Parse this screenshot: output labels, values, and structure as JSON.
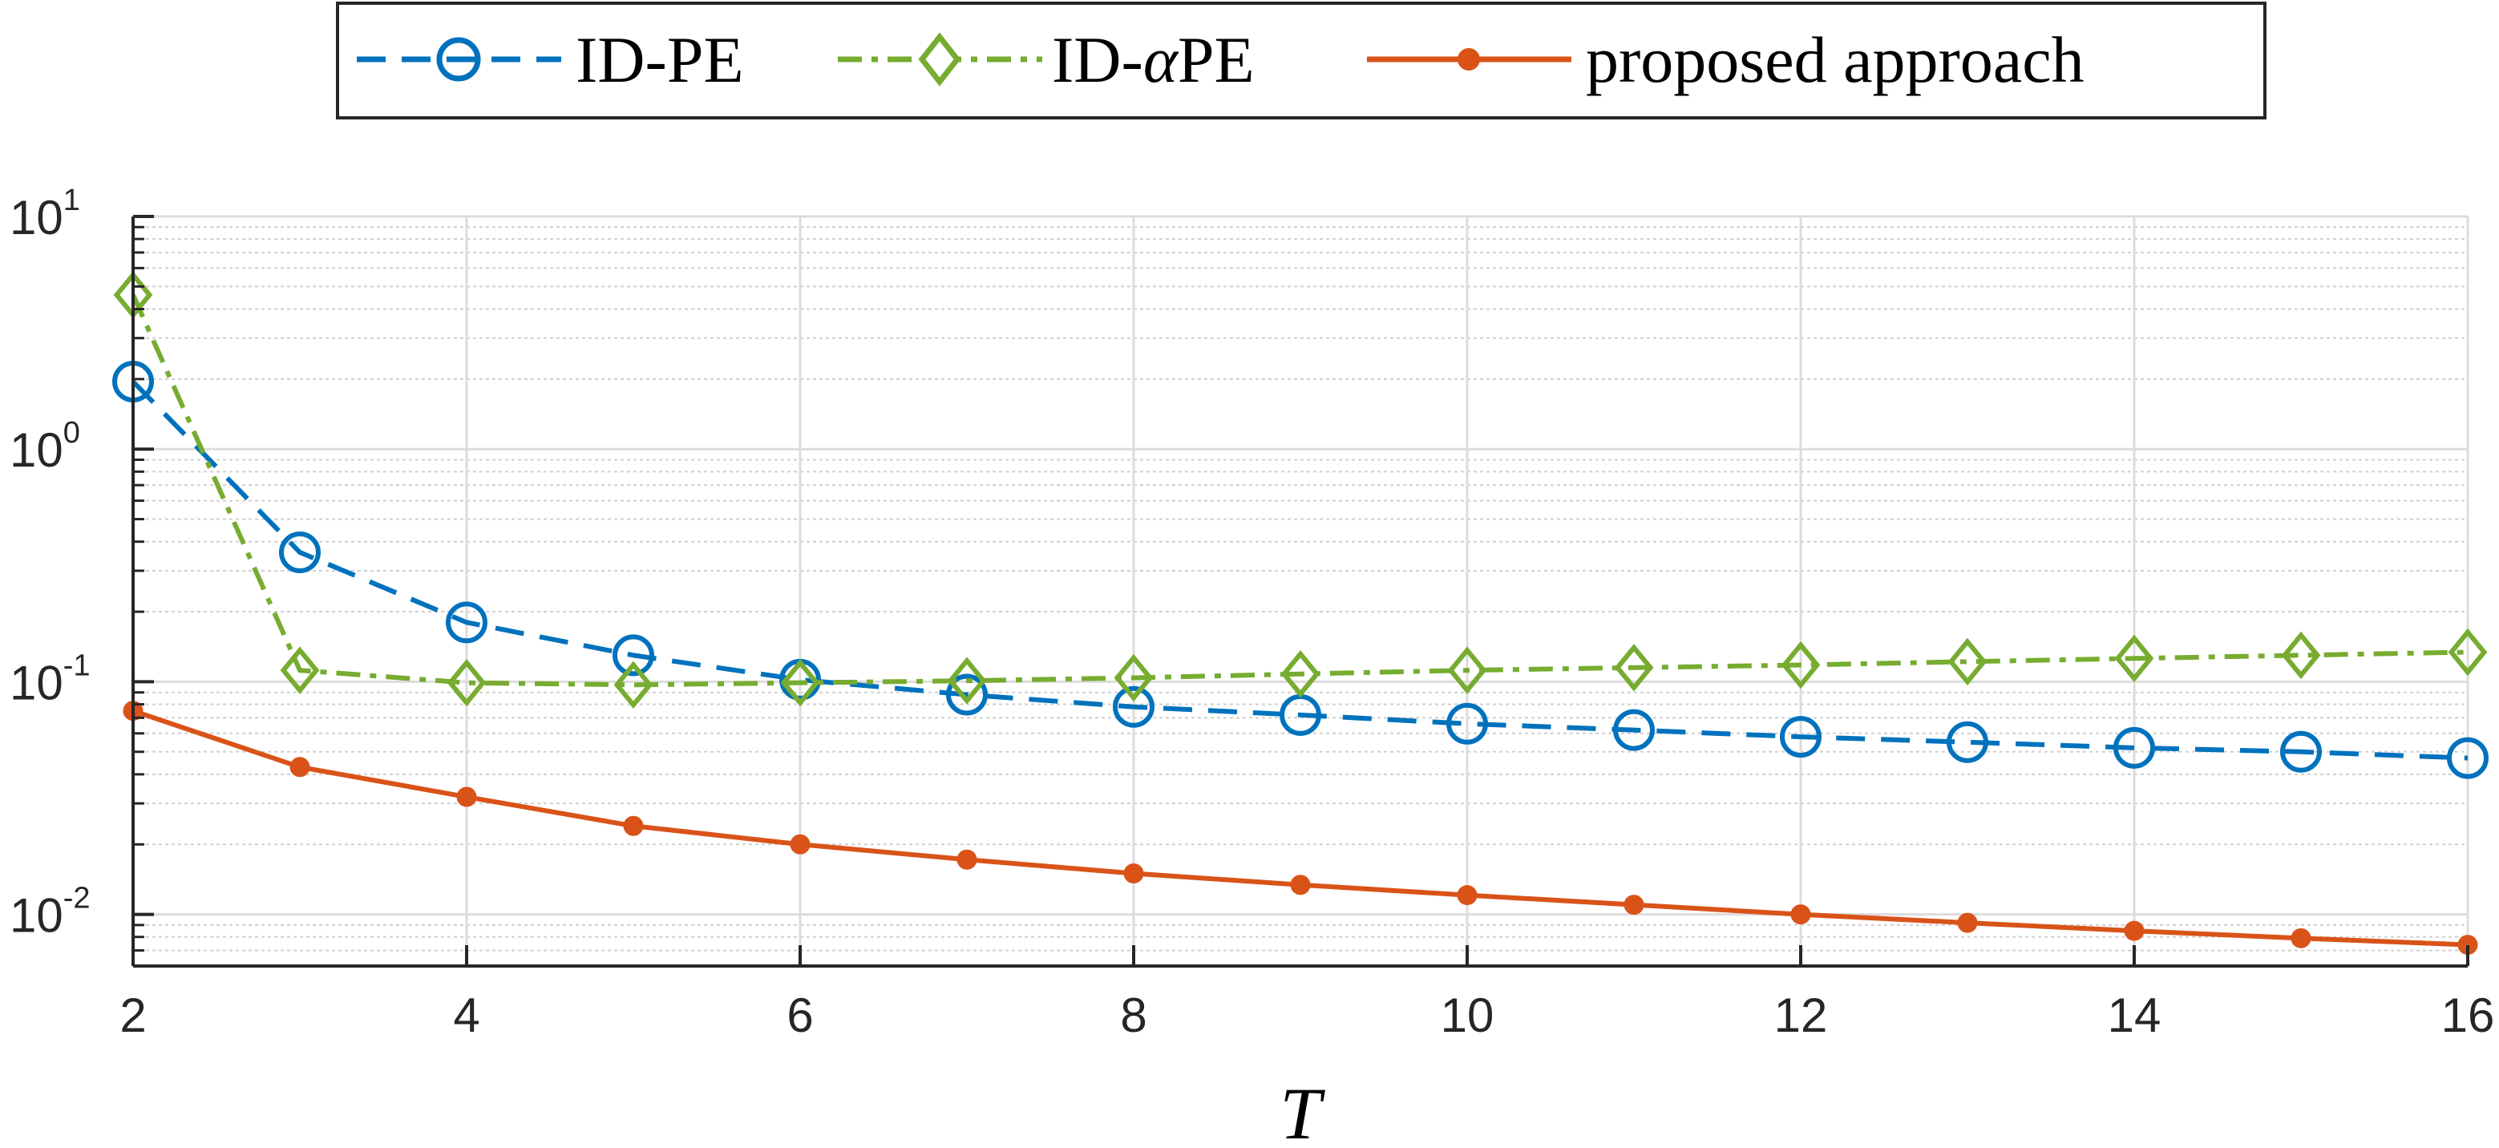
{
  "chart_data": {
    "type": "line",
    "yscale": "log",
    "xlabel": "T",
    "ylabel": "",
    "xlim": [
      2,
      16
    ],
    "ylim": [
      0.006,
      10
    ],
    "xticks": [
      2,
      4,
      6,
      8,
      10,
      12,
      14,
      16
    ],
    "xtick_labels": [
      "2",
      "4",
      "6",
      "8",
      "10",
      "12",
      "14",
      "16"
    ],
    "yticks": [
      {
        "value": 10,
        "base": "10",
        "exp": "1"
      },
      {
        "value": 1,
        "base": "10",
        "exp": "0"
      },
      {
        "value": 0.1,
        "base": "10",
        "exp": "-1"
      },
      {
        "value": 0.01,
        "base": "10",
        "exp": "-2"
      }
    ],
    "grid": true,
    "legend_position": "top-center-outside",
    "x": [
      2,
      3,
      4,
      5,
      6,
      7,
      8,
      9,
      10,
      11,
      12,
      13,
      14,
      15,
      16
    ],
    "series": [
      {
        "name": "ID-PE",
        "legend_prefix": "ID-",
        "legend_suffix": "PE",
        "color": "#0072BD",
        "line_style": "dashed",
        "marker": "circle",
        "values": [
          1.95,
          0.36,
          0.18,
          0.13,
          0.102,
          0.088,
          0.078,
          0.072,
          0.066,
          0.062,
          0.058,
          0.055,
          0.052,
          0.05,
          0.047
        ]
      },
      {
        "name": "ID-αPE",
        "legend_prefix": "ID-",
        "legend_alpha": "α",
        "legend_suffix": "PE",
        "color": "#77AC30",
        "line_style": "dashdot",
        "marker": "diamond",
        "values": [
          4.6,
          0.112,
          0.099,
          0.097,
          0.099,
          0.101,
          0.104,
          0.108,
          0.112,
          0.115,
          0.118,
          0.122,
          0.126,
          0.13,
          0.134
        ]
      },
      {
        "name": "proposed approach",
        "legend_prefix": "proposed approach",
        "color": "#D95319",
        "line_style": "solid",
        "marker": "dot",
        "values": [
          0.075,
          0.043,
          0.032,
          0.024,
          0.02,
          0.0172,
          0.015,
          0.0134,
          0.0121,
          0.011,
          0.01,
          0.0092,
          0.0085,
          0.0079,
          0.0074
        ]
      }
    ]
  }
}
